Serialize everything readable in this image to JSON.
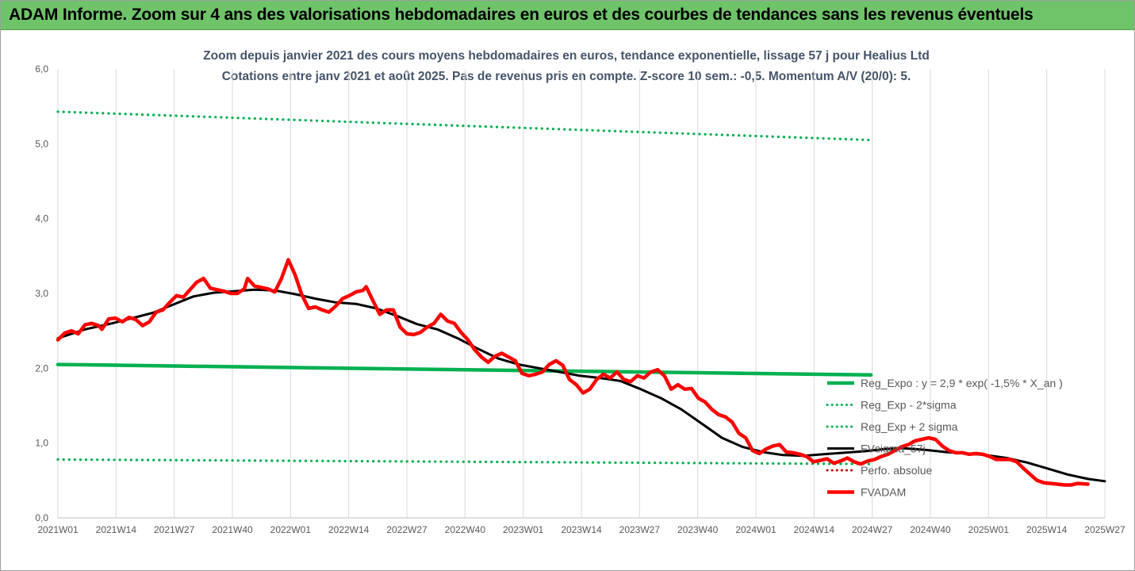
{
  "header": {
    "banner": "ADAM Informe. Zoom sur 4 ans des valorisations hebdomadaires en euros et des courbes de tendances sans les revenus éventuels"
  },
  "chart_data": {
    "type": "line",
    "title": "Zoom depuis janvier 2021 des cours moyens hebdomadaires en euros, tendance exponentielle, lissage 57 j pour Healius Ltd",
    "subtitle": "Cotations entre janv 2021 et août 2025. Pas de revenus pris en compte. Z-score 10 sem.: -0,5. Momentum A/V (20/0): 5.",
    "xlabel": "",
    "ylabel": "",
    "ylim": [
      0,
      6
    ],
    "yticks": [
      "0,0",
      "1,0",
      "2,0",
      "3,0",
      "4,0",
      "5,0",
      "6,0"
    ],
    "x_tick_labels": [
      "2021W01",
      "2021W14",
      "2021W27",
      "2021W40",
      "2022W01",
      "2022W14",
      "2022W27",
      "2022W40",
      "2023W01",
      "2023W14",
      "2023W27",
      "2023W40",
      "2024W01",
      "2024W14",
      "2024W27",
      "2024W40",
      "2025W01",
      "2025W14",
      "2025W27"
    ],
    "x_week_count": 241,
    "grid": "vertical",
    "legend_position": "right",
    "series": [
      {
        "name": "Reg_Expo : y = 2,9 * exp( -1,5% *  X_an )",
        "color": "#00b050",
        "style": "solid",
        "values": [
          [
            0,
            2.05
          ],
          [
            240,
            1.91
          ]
        ]
      },
      {
        "name": "Reg_Exp - 2*sigma",
        "color": "#00b050",
        "style": "dotted",
        "values": [
          [
            0,
            0.78
          ],
          [
            240,
            0.72
          ]
        ]
      },
      {
        "name": "Reg_Exp + 2 sigma",
        "color": "#00b050",
        "style": "dotted",
        "values": [
          [
            0,
            5.43
          ],
          [
            240,
            5.05
          ]
        ]
      },
      {
        "name": "FVsigma_57j",
        "color": "#000000",
        "style": "solid",
        "values": [
          [
            0,
            2.4
          ],
          [
            8,
            2.52
          ],
          [
            16,
            2.6
          ],
          [
            22,
            2.67
          ],
          [
            28,
            2.74
          ],
          [
            34,
            2.85
          ],
          [
            40,
            2.96
          ],
          [
            46,
            3.01
          ],
          [
            52,
            3.03
          ],
          [
            58,
            3.05
          ],
          [
            64,
            3.04
          ],
          [
            70,
            2.99
          ],
          [
            76,
            2.93
          ],
          [
            82,
            2.88
          ],
          [
            88,
            2.86
          ],
          [
            94,
            2.8
          ],
          [
            100,
            2.7
          ],
          [
            106,
            2.59
          ],
          [
            112,
            2.52
          ],
          [
            118,
            2.4
          ],
          [
            124,
            2.26
          ],
          [
            130,
            2.13
          ],
          [
            136,
            2.05
          ],
          [
            142,
            2.0
          ],
          [
            148,
            1.95
          ],
          [
            154,
            1.9
          ],
          [
            160,
            1.87
          ],
          [
            166,
            1.83
          ],
          [
            172,
            1.72
          ],
          [
            178,
            1.6
          ],
          [
            184,
            1.45
          ],
          [
            190,
            1.26
          ],
          [
            196,
            1.07
          ],
          [
            202,
            0.95
          ],
          [
            208,
            0.88
          ],
          [
            214,
            0.84
          ],
          [
            220,
            0.83
          ],
          [
            226,
            0.85
          ],
          [
            232,
            0.87
          ],
          [
            238,
            0.89
          ],
          [
            244,
            0.92
          ],
          [
            250,
            0.93
          ],
          [
            256,
            0.91
          ],
          [
            262,
            0.88
          ],
          [
            268,
            0.86
          ],
          [
            274,
            0.84
          ],
          [
            280,
            0.8
          ],
          [
            286,
            0.74
          ],
          [
            292,
            0.66
          ],
          [
            298,
            0.58
          ],
          [
            304,
            0.52
          ],
          [
            309,
            0.49
          ]
        ]
      },
      {
        "name": "Perfo. absolue",
        "color": "#c00000",
        "style": "dotted",
        "values": []
      },
      {
        "name": "FVADAM",
        "color": "#ff0000",
        "style": "solid",
        "values": [
          [
            0,
            2.38
          ],
          [
            2,
            2.47
          ],
          [
            4,
            2.5
          ],
          [
            6,
            2.46
          ],
          [
            8,
            2.58
          ],
          [
            10,
            2.6
          ],
          [
            12,
            2.57
          ],
          [
            13,
            2.52
          ],
          [
            15,
            2.66
          ],
          [
            17,
            2.67
          ],
          [
            19,
            2.62
          ],
          [
            21,
            2.68
          ],
          [
            23,
            2.65
          ],
          [
            25,
            2.57
          ],
          [
            27,
            2.62
          ],
          [
            29,
            2.75
          ],
          [
            31,
            2.78
          ],
          [
            33,
            2.88
          ],
          [
            35,
            2.97
          ],
          [
            37,
            2.95
          ],
          [
            39,
            3.05
          ],
          [
            41,
            3.15
          ],
          [
            43,
            3.2
          ],
          [
            45,
            3.07
          ],
          [
            47,
            3.05
          ],
          [
            49,
            3.03
          ],
          [
            51,
            3.0
          ],
          [
            53,
            3.0
          ],
          [
            55,
            3.06
          ],
          [
            56,
            3.2
          ],
          [
            58,
            3.1
          ],
          [
            60,
            3.08
          ],
          [
            62,
            3.06
          ],
          [
            64,
            3.02
          ],
          [
            66,
            3.2
          ],
          [
            68,
            3.45
          ],
          [
            70,
            3.25
          ],
          [
            72,
            2.98
          ],
          [
            74,
            2.8
          ],
          [
            76,
            2.82
          ],
          [
            78,
            2.78
          ],
          [
            80,
            2.75
          ],
          [
            82,
            2.83
          ],
          [
            84,
            2.93
          ],
          [
            86,
            2.97
          ],
          [
            88,
            3.02
          ],
          [
            90,
            3.04
          ],
          [
            91,
            3.09
          ],
          [
            93,
            2.9
          ],
          [
            95,
            2.72
          ],
          [
            97,
            2.78
          ],
          [
            99,
            2.78
          ],
          [
            101,
            2.55
          ],
          [
            103,
            2.46
          ],
          [
            105,
            2.45
          ],
          [
            107,
            2.48
          ],
          [
            109,
            2.55
          ],
          [
            111,
            2.6
          ],
          [
            113,
            2.72
          ],
          [
            115,
            2.63
          ],
          [
            117,
            2.6
          ],
          [
            119,
            2.48
          ],
          [
            121,
            2.38
          ],
          [
            123,
            2.25
          ],
          [
            125,
            2.15
          ],
          [
            127,
            2.08
          ],
          [
            129,
            2.16
          ],
          [
            131,
            2.2
          ],
          [
            133,
            2.15
          ],
          [
            135,
            2.1
          ],
          [
            137,
            1.93
          ],
          [
            139,
            1.9
          ],
          [
            141,
            1.92
          ],
          [
            143,
            1.95
          ],
          [
            145,
            2.05
          ],
          [
            147,
            2.1
          ],
          [
            149,
            2.04
          ],
          [
            151,
            1.85
          ],
          [
            153,
            1.78
          ],
          [
            155,
            1.67
          ],
          [
            157,
            1.72
          ],
          [
            159,
            1.85
          ],
          [
            161,
            1.92
          ],
          [
            163,
            1.87
          ],
          [
            165,
            1.95
          ],
          [
            167,
            1.85
          ],
          [
            169,
            1.82
          ],
          [
            171,
            1.9
          ],
          [
            173,
            1.87
          ],
          [
            175,
            1.95
          ],
          [
            177,
            1.98
          ],
          [
            179,
            1.9
          ],
          [
            181,
            1.72
          ],
          [
            183,
            1.78
          ],
          [
            185,
            1.72
          ],
          [
            187,
            1.73
          ],
          [
            189,
            1.6
          ],
          [
            191,
            1.55
          ],
          [
            193,
            1.45
          ],
          [
            195,
            1.38
          ],
          [
            197,
            1.35
          ],
          [
            199,
            1.28
          ],
          [
            201,
            1.13
          ],
          [
            203,
            1.07
          ],
          [
            205,
            0.9
          ],
          [
            207,
            0.86
          ],
          [
            209,
            0.92
          ],
          [
            211,
            0.96
          ],
          [
            213,
            0.98
          ],
          [
            215,
            0.88
          ],
          [
            217,
            0.87
          ],
          [
            219,
            0.85
          ],
          [
            221,
            0.82
          ],
          [
            223,
            0.75
          ],
          [
            225,
            0.77
          ],
          [
            227,
            0.79
          ],
          [
            229,
            0.73
          ],
          [
            231,
            0.76
          ],
          [
            233,
            0.8
          ],
          [
            235,
            0.75
          ],
          [
            237,
            0.72
          ],
          [
            239,
            0.76
          ],
          [
            241,
            0.78
          ],
          [
            243,
            0.82
          ],
          [
            245,
            0.85
          ],
          [
            247,
            0.9
          ],
          [
            249,
            0.95
          ],
          [
            251,
            0.98
          ],
          [
            253,
            1.03
          ],
          [
            255,
            1.05
          ],
          [
            257,
            1.07
          ],
          [
            259,
            1.05
          ],
          [
            261,
            0.96
          ],
          [
            263,
            0.9
          ],
          [
            265,
            0.87
          ],
          [
            267,
            0.87
          ],
          [
            269,
            0.85
          ],
          [
            271,
            0.86
          ],
          [
            273,
            0.85
          ],
          [
            275,
            0.82
          ],
          [
            277,
            0.78
          ],
          [
            279,
            0.78
          ],
          [
            281,
            0.78
          ],
          [
            283,
            0.75
          ],
          [
            285,
            0.66
          ],
          [
            287,
            0.58
          ],
          [
            289,
            0.5
          ],
          [
            291,
            0.47
          ],
          [
            293,
            0.46
          ],
          [
            295,
            0.45
          ],
          [
            297,
            0.44
          ],
          [
            299,
            0.44
          ],
          [
            301,
            0.46
          ],
          [
            304,
            0.45
          ]
        ]
      }
    ]
  }
}
